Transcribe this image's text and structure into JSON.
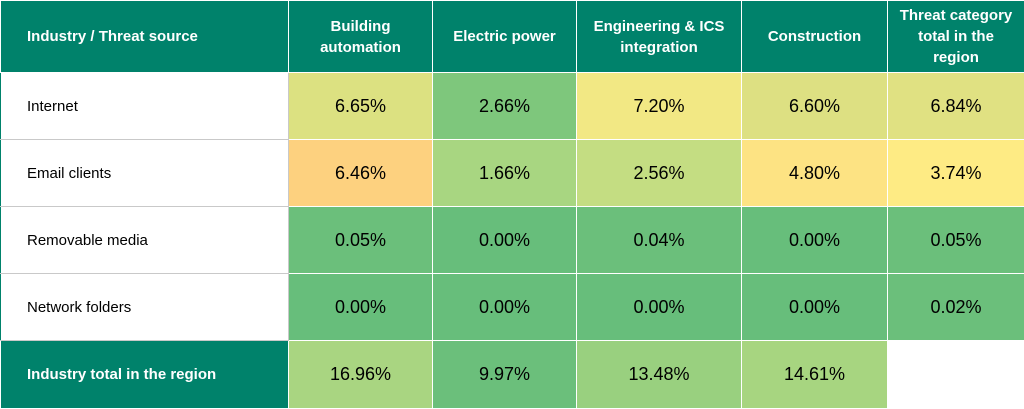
{
  "chart_data": {
    "type": "heatmap",
    "corner_label": [
      "Industry /",
      "Threat source"
    ],
    "columns": [
      {
        "label": [
          "Building",
          "automation"
        ]
      },
      {
        "label": [
          "Electric power"
        ]
      },
      {
        "label": [
          "Engineering & ICS",
          "integration"
        ]
      },
      {
        "label": [
          "Construction"
        ]
      },
      {
        "label": [
          "Threat category",
          "total in the",
          "region"
        ]
      }
    ],
    "rows": [
      {
        "label": "Internet",
        "cells": [
          {
            "value": "6.65%",
            "color": "#dce181"
          },
          {
            "value": "2.66%",
            "color": "#7ec77c"
          },
          {
            "value": "7.20%",
            "color": "#f2e884"
          },
          {
            "value": "6.60%",
            "color": "#dde082"
          },
          {
            "value": "6.84%",
            "color": "#e0e182"
          }
        ]
      },
      {
        "label": "Email clients",
        "cells": [
          {
            "value": "6.46%",
            "color": "#fdd17f"
          },
          {
            "value": "1.66%",
            "color": "#a8d681"
          },
          {
            "value": "2.56%",
            "color": "#c4dd82"
          },
          {
            "value": "4.80%",
            "color": "#fde383"
          },
          {
            "value": "3.74%",
            "color": "#feeb84"
          }
        ]
      },
      {
        "label": "Removable media",
        "cells": [
          {
            "value": "0.05%",
            "color": "#6bbf7b"
          },
          {
            "value": "0.00%",
            "color": "#67be7b"
          },
          {
            "value": "0.04%",
            "color": "#6bbf7b"
          },
          {
            "value": "0.00%",
            "color": "#67be7b"
          },
          {
            "value": "0.05%",
            "color": "#6bbf7b"
          }
        ]
      },
      {
        "label": "Network folders",
        "cells": [
          {
            "value": "0.00%",
            "color": "#67be7b"
          },
          {
            "value": "0.00%",
            "color": "#67be7b"
          },
          {
            "value": "0.00%",
            "color": "#67be7b"
          },
          {
            "value": "0.00%",
            "color": "#67be7b"
          },
          {
            "value": "0.02%",
            "color": "#6bbf7b"
          }
        ]
      }
    ],
    "total_row": {
      "label": "Industry total in the region",
      "cells": [
        {
          "value": "16.96%",
          "color": "#a9d581"
        },
        {
          "value": "9.97%",
          "color": "#6bbf7b"
        },
        {
          "value": "13.48%",
          "color": "#99d07f"
        },
        {
          "value": "14.61%",
          "color": "#a7d580"
        }
      ]
    },
    "header_color": "#00826b"
  }
}
